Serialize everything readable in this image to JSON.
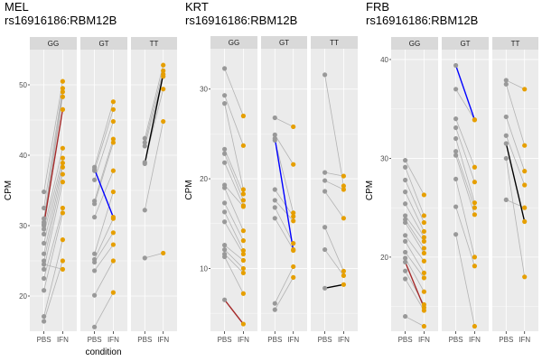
{
  "colors": {
    "panel_bg": "#ebebeb",
    "grid": "#ffffff",
    "strip_bg": "#d9d9d9",
    "line_default": "#b3b3b3",
    "point_PBS": "#999999",
    "point_IFN": "#e69f00"
  },
  "chart_data": [
    {
      "type": "line",
      "title": "MEL",
      "subtitle": "rs16916186:RBM12B",
      "xlabel": "condition",
      "ylabel": "CPM",
      "x": [
        "PBS",
        "IFN"
      ],
      "ylim": [
        15,
        55
      ],
      "yticks": [
        20,
        30,
        40,
        50
      ],
      "facets": [
        {
          "genotype": "GG",
          "pairs": [
            [
              34.8,
              50.5
            ],
            [
              32.5,
              49.5
            ],
            [
              31.0,
              49.0
            ],
            [
              30.5,
              48.3
            ],
            [
              30.0,
              46.5
            ],
            [
              29.5,
              41.0
            ],
            [
              28.8,
              39.6
            ],
            [
              27.5,
              38.9
            ],
            [
              26.0,
              38.3
            ],
            [
              25.0,
              37.3
            ],
            [
              23.8,
              36.2
            ],
            [
              22.5,
              32.5
            ],
            [
              20.8,
              31.8
            ],
            [
              17.1,
              28.0
            ],
            [
              16.4,
              25.0
            ],
            [
              24.5,
              23.8
            ]
          ],
          "highlights": [
            {
              "pbs": 30.2,
              "ifn": 46.5,
              "color": "#a52a2a"
            }
          ]
        },
        {
          "genotype": "GT",
          "pairs": [
            [
              38.3,
              47.6
            ],
            [
              37.8,
              46.5
            ],
            [
              36.5,
              44.8
            ],
            [
              33.5,
              42.3
            ],
            [
              33.1,
              41.8
            ],
            [
              31.2,
              37.8
            ],
            [
              26.0,
              34.8
            ],
            [
              25.2,
              31.0
            ],
            [
              24.8,
              29.0
            ],
            [
              23.6,
              27.3
            ],
            [
              20.1,
              25.0
            ],
            [
              15.6,
              20.5
            ]
          ],
          "highlights": [
            {
              "pbs": 38.0,
              "ifn": 31.2,
              "color": "#0000ff"
            }
          ]
        },
        {
          "genotype": "TT",
          "pairs": [
            [
              42.4,
              52.8
            ],
            [
              41.8,
              52.0
            ],
            [
              41.3,
              51.2
            ],
            [
              39.0,
              49.4
            ],
            [
              32.2,
              44.8
            ],
            [
              25.4,
              26.1
            ]
          ],
          "highlights": [
            {
              "pbs": 38.8,
              "ifn": 51.5,
              "color": "#000000"
            }
          ]
        }
      ]
    },
    {
      "type": "line",
      "title": "KRT",
      "subtitle": "rs16916186:RBM12B",
      "xlabel": "",
      "ylabel": "CPM",
      "x": [
        "PBS",
        "IFN"
      ],
      "ylim": [
        3,
        34.5
      ],
      "yticks": [
        10,
        20,
        30
      ],
      "facets": [
        {
          "genotype": "GG",
          "pairs": [
            [
              32.3,
              27.0
            ],
            [
              29.3,
              23.7
            ],
            [
              28.4,
              18.8
            ],
            [
              23.3,
              18.3
            ],
            [
              22.8,
              17.6
            ],
            [
              21.8,
              17.0
            ],
            [
              19.3,
              16.9
            ],
            [
              19.0,
              14.2
            ],
            [
              17.3,
              13.1
            ],
            [
              16.3,
              12.0
            ],
            [
              15.2,
              11.6
            ],
            [
              12.6,
              10.9
            ],
            [
              12.1,
              10.0
            ],
            [
              11.6,
              9.5
            ],
            [
              11.3,
              7.2
            ]
          ],
          "highlights": [
            {
              "pbs": 6.5,
              "ifn": 3.8,
              "color": "#a52a2a"
            }
          ]
        },
        {
          "genotype": "GT",
          "pairs": [
            [
              26.8,
              25.8
            ],
            [
              24.9,
              21.6
            ],
            [
              24.3,
              16.2
            ],
            [
              18.8,
              15.8
            ],
            [
              17.6,
              15.3
            ],
            [
              16.8,
              12.8
            ],
            [
              15.6,
              12.1
            ],
            [
              6.1,
              10.2
            ],
            [
              5.4,
              9.0
            ]
          ],
          "highlights": [
            {
              "pbs": 24.5,
              "ifn": 12.0,
              "color": "#0000ff"
            }
          ]
        },
        {
          "genotype": "TT",
          "pairs": [
            [
              31.6,
              19.2
            ],
            [
              20.7,
              20.3
            ],
            [
              19.8,
              18.8
            ],
            [
              18.6,
              15.6
            ],
            [
              14.6,
              9.7
            ],
            [
              12.1,
              9.2
            ]
          ],
          "highlights": [
            {
              "pbs": 7.8,
              "ifn": 8.2,
              "color": "#000000"
            }
          ]
        }
      ]
    },
    {
      "type": "line",
      "title": "FRB",
      "subtitle": "rs16916186:RBM12B",
      "xlabel": "",
      "ylabel": "CPM",
      "x": [
        "PBS",
        "IFN"
      ],
      "ylim": [
        12.5,
        41
      ],
      "yticks": [
        20,
        30,
        40
      ],
      "facets": [
        {
          "genotype": "GG",
          "pairs": [
            [
              29.8,
              26.3
            ],
            [
              29.1,
              24.2
            ],
            [
              27.8,
              23.5
            ],
            [
              26.6,
              22.6
            ],
            [
              25.4,
              22.0
            ],
            [
              24.2,
              21.6
            ],
            [
              23.8,
              20.9
            ],
            [
              23.5,
              20.4
            ],
            [
              22.2,
              19.6
            ],
            [
              21.6,
              18.4
            ],
            [
              20.5,
              17.9
            ],
            [
              19.9,
              16.5
            ],
            [
              18.6,
              15.2
            ],
            [
              17.8,
              14.6
            ],
            [
              14.0,
              13.0
            ]
          ],
          "highlights": [
            {
              "pbs": 19.5,
              "ifn": 14.9,
              "color": "#a52a2a"
            }
          ]
        },
        {
          "genotype": "GT",
          "pairs": [
            [
              37.0,
              33.9
            ],
            [
              34.0,
              29.1
            ],
            [
              33.1,
              27.6
            ],
            [
              32.0,
              25.5
            ],
            [
              30.7,
              25.0
            ],
            [
              30.3,
              24.3
            ],
            [
              27.9,
              20.0
            ],
            [
              25.1,
              19.1
            ],
            [
              22.3,
              13.0
            ]
          ],
          "highlights": [
            {
              "pbs": 39.4,
              "ifn": 33.9,
              "color": "#0000ff"
            }
          ]
        },
        {
          "genotype": "TT",
          "pairs": [
            [
              37.9,
              37.0
            ],
            [
              37.5,
              31.3
            ],
            [
              34.2,
              28.7
            ],
            [
              32.3,
              27.3
            ],
            [
              25.8,
              25.0
            ],
            [
              30.0,
              18.0
            ]
          ],
          "highlights": [
            {
              "pbs": 31.5,
              "ifn": 23.6,
              "color": "#000000"
            }
          ]
        }
      ]
    }
  ]
}
